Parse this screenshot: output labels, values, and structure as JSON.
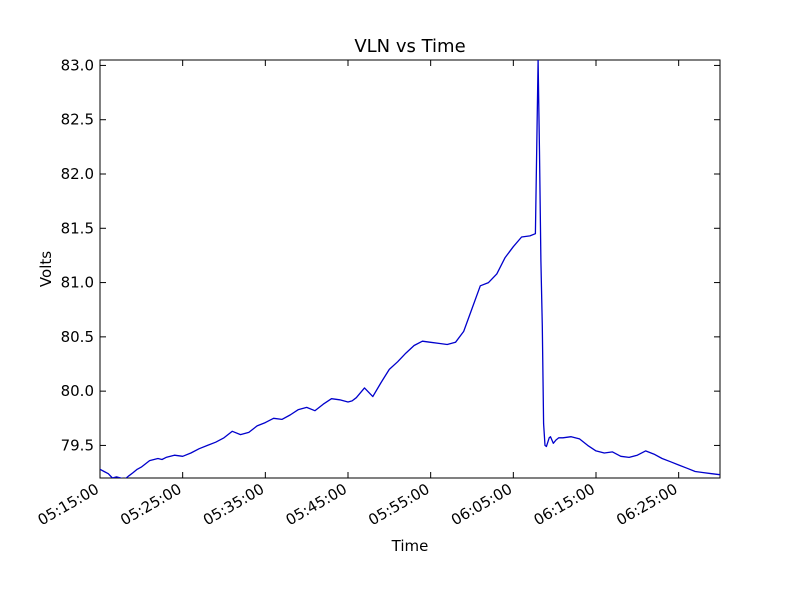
{
  "chart_data": {
    "type": "line",
    "title": "VLN vs Time",
    "xlabel": "Time",
    "ylabel": "Volts",
    "xlim": [
      "05:15:00",
      "06:30:00"
    ],
    "ylim": [
      79.2,
      83.05
    ],
    "x_ticks": [
      "05:15:00",
      "05:25:00",
      "05:35:00",
      "05:45:00",
      "05:55:00",
      "06:05:00",
      "06:15:00",
      "06:25:00"
    ],
    "y_ticks": [
      "79.5",
      "80.0",
      "80.5",
      "81.0",
      "81.5",
      "82.0",
      "82.5",
      "83.0"
    ],
    "grid": false,
    "series": [
      {
        "color": "#0000cc",
        "x": [
          "05:15:00",
          "05:15:30",
          "05:16:00",
          "05:16:30",
          "05:17:00",
          "05:17:30",
          "05:18:00",
          "05:18:30",
          "05:19:00",
          "05:19:30",
          "05:20:00",
          "05:21:00",
          "05:22:00",
          "05:22:30",
          "05:23:00",
          "05:24:00",
          "05:25:00",
          "05:26:00",
          "05:27:00",
          "05:28:00",
          "05:29:00",
          "05:30:00",
          "05:31:00",
          "05:32:00",
          "05:33:00",
          "05:34:00",
          "05:35:00",
          "05:36:00",
          "05:37:00",
          "05:38:00",
          "05:39:00",
          "05:40:00",
          "05:41:00",
          "05:42:00",
          "05:43:00",
          "05:44:00",
          "05:45:00",
          "05:45:30",
          "05:46:00",
          "05:47:00",
          "05:48:00",
          "05:49:00",
          "05:50:00",
          "05:51:00",
          "05:52:00",
          "05:53:00",
          "05:54:00",
          "05:55:00",
          "05:56:00",
          "05:57:00",
          "05:58:00",
          "05:59:00",
          "06:00:00",
          "06:01:00",
          "06:02:00",
          "06:03:00",
          "06:04:00",
          "06:05:00",
          "06:06:00",
          "06:07:00",
          "06:07:40",
          "06:08:00",
          "06:08:10",
          "06:08:20",
          "06:08:30",
          "06:08:40",
          "06:08:50",
          "06:09:00",
          "06:09:10",
          "06:09:20",
          "06:09:30",
          "06:09:50",
          "06:10:10",
          "06:10:30",
          "06:11:00",
          "06:12:00",
          "06:13:00",
          "06:14:00",
          "06:15:00",
          "06:16:00",
          "06:17:00",
          "06:18:00",
          "06:19:00",
          "06:20:00",
          "06:21:00",
          "06:22:00",
          "06:23:00",
          "06:24:00",
          "06:25:00",
          "06:26:00",
          "06:27:00",
          "06:28:00",
          "06:29:00",
          "06:30:00"
        ],
        "y": [
          79.28,
          79.26,
          79.24,
          79.2,
          79.21,
          79.2,
          79.19,
          79.22,
          79.25,
          79.28,
          79.3,
          79.36,
          79.38,
          79.37,
          79.39,
          79.41,
          79.4,
          79.43,
          79.47,
          79.5,
          79.53,
          79.57,
          79.63,
          79.6,
          79.62,
          79.68,
          79.71,
          79.75,
          79.74,
          79.78,
          79.83,
          79.85,
          79.82,
          79.88,
          79.93,
          79.92,
          79.9,
          79.91,
          79.94,
          80.03,
          79.95,
          80.08,
          80.2,
          80.27,
          80.35,
          80.42,
          80.46,
          80.45,
          80.44,
          80.43,
          80.45,
          80.55,
          80.76,
          80.97,
          81.0,
          81.08,
          81.23,
          81.33,
          81.42,
          81.43,
          81.45,
          83.05,
          82.2,
          81.2,
          80.6,
          79.7,
          79.5,
          79.49,
          79.53,
          79.57,
          79.58,
          79.52,
          79.55,
          79.57,
          79.57,
          79.58,
          79.56,
          79.5,
          79.45,
          79.43,
          79.44,
          79.4,
          79.39,
          79.41,
          79.45,
          79.42,
          79.38,
          79.35,
          79.32,
          79.29,
          79.26,
          79.25,
          79.24,
          79.23
        ]
      }
    ]
  }
}
